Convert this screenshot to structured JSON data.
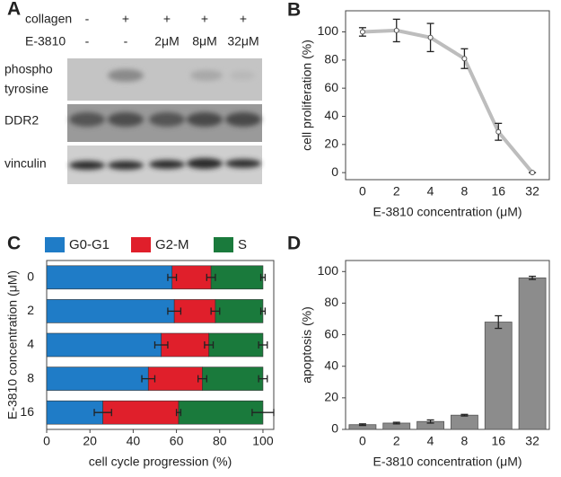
{
  "blot": {
    "panel": "A",
    "collagen_label": "collagen",
    "drug_label": "E-3810",
    "collagen": [
      "-",
      "+",
      "+",
      "+",
      "+"
    ],
    "drug": [
      "-",
      "-",
      "2μM",
      "8μM",
      "32μM"
    ],
    "row_labels": [
      [
        "phospho",
        "tyrosine"
      ],
      [
        "DDR2"
      ],
      [
        "vinculin"
      ]
    ]
  },
  "chart_data": [
    {
      "type": "line",
      "panel": "B",
      "categories": [
        "0",
        "2",
        "4",
        "8",
        "16",
        "32"
      ],
      "values": [
        100,
        101,
        96,
        81,
        29,
        0
      ],
      "errors": [
        3,
        8,
        10,
        7,
        6,
        0
      ],
      "color": "#bdbdbd",
      "ylim": [
        -5,
        115
      ],
      "yticks": [
        0,
        20,
        40,
        60,
        80,
        100
      ],
      "xlabel": "E-3810 concentration (μM)",
      "ylabel": "cell proliferation (%)"
    },
    {
      "type": "barh",
      "panel": "C",
      "categories": [
        "0",
        "2",
        "4",
        "8",
        "16"
      ],
      "series": [
        {
          "name": "G0-G1",
          "color": "#1f7cc7",
          "values": [
            58,
            59,
            53,
            47,
            26
          ],
          "errors": [
            2,
            3,
            3,
            3,
            4
          ]
        },
        {
          "name": "G2-M",
          "color": "#e01f2b",
          "values": [
            18,
            19,
            22,
            25,
            35
          ],
          "errors": [
            2,
            2,
            2,
            2,
            1
          ]
        },
        {
          "name": "S",
          "color": "#1a7a3c",
          "values": [
            24,
            22,
            25,
            28,
            39
          ],
          "errors": [
            1,
            1,
            2,
            2,
            5
          ]
        }
      ],
      "xlim": [
        0,
        105
      ],
      "xticks": [
        0,
        20,
        40,
        60,
        80,
        100
      ],
      "xlabel": "cell cycle progression (%)",
      "ylabel": "E-3810 concentration (μM)"
    },
    {
      "type": "bar",
      "panel": "D",
      "categories": [
        "0",
        "2",
        "4",
        "8",
        "16",
        "32"
      ],
      "values": [
        3,
        4,
        5,
        9,
        68,
        96
      ],
      "errors": [
        0.5,
        0.5,
        1,
        0.5,
        4,
        1
      ],
      "color": "#8c8c8c",
      "ylim": [
        0,
        107
      ],
      "yticks": [
        0,
        20,
        40,
        60,
        80,
        100
      ],
      "xlabel": "E-3810 concentration (μM)",
      "ylabel": "apoptosis (%)"
    }
  ]
}
